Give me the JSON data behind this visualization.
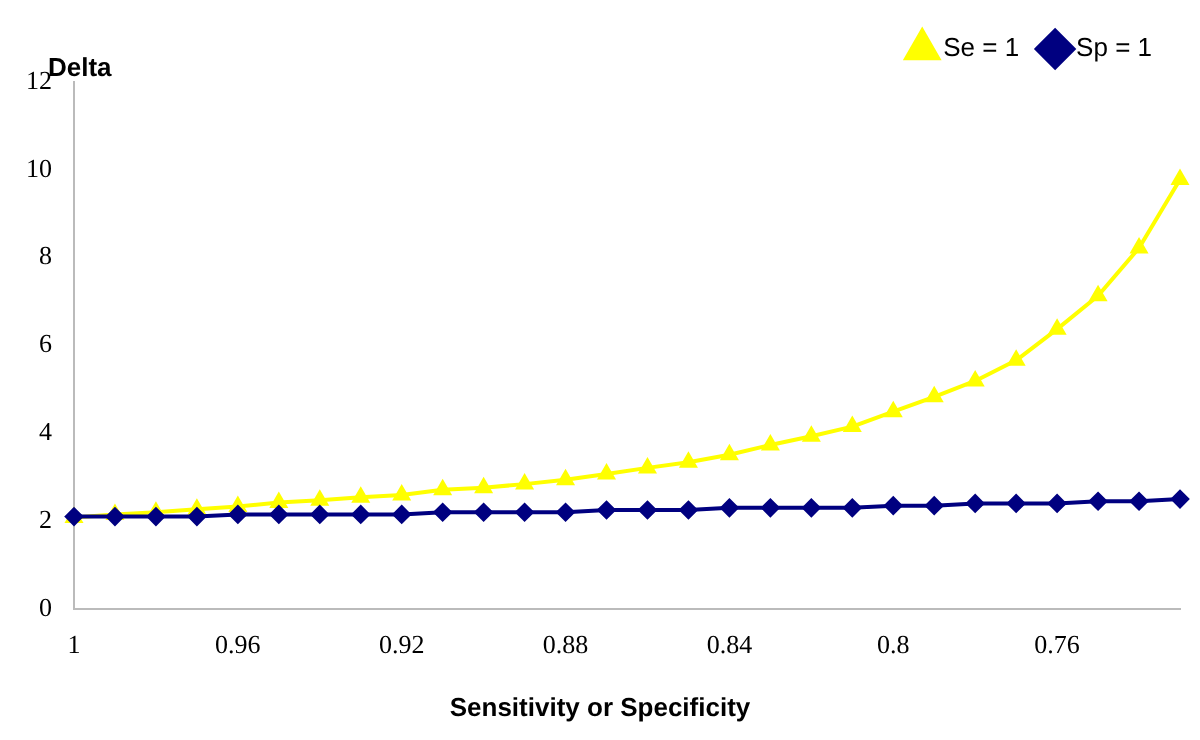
{
  "chart_data": {
    "type": "line",
    "ylabel": "Delta",
    "xlabel": "Sensitivity or Specificity",
    "categories": [
      "1",
      null,
      null,
      null,
      "0.96",
      null,
      null,
      null,
      "0.92",
      null,
      null,
      null,
      "0.88",
      null,
      null,
      null,
      "0.84",
      null,
      null,
      null,
      "0.8",
      null,
      null,
      null,
      "0.76",
      null,
      null,
      null
    ],
    "series": [
      {
        "name": "Se = 1",
        "color": "#ffff00",
        "marker": "triangle",
        "values": [
          2.08,
          2.15,
          2.2,
          2.27,
          2.33,
          2.42,
          2.47,
          2.54,
          2.59,
          2.71,
          2.76,
          2.84,
          2.94,
          3.07,
          3.21,
          3.34,
          3.51,
          3.73,
          3.93,
          4.15,
          4.49,
          4.83,
          5.19,
          5.66,
          6.37,
          7.13,
          8.22,
          9.78
        ]
      },
      {
        "name": "Sp = 1",
        "color": "#000080",
        "marker": "diamond",
        "values": [
          2.1,
          2.1,
          2.1,
          2.1,
          2.15,
          2.15,
          2.15,
          2.15,
          2.15,
          2.2,
          2.2,
          2.2,
          2.2,
          2.25,
          2.25,
          2.25,
          2.3,
          2.3,
          2.3,
          2.3,
          2.35,
          2.35,
          2.4,
          2.4,
          2.4,
          2.45,
          2.45,
          2.5
        ]
      }
    ],
    "ylim": [
      0,
      12
    ],
    "yticks": [
      0,
      2,
      4,
      6,
      8,
      10,
      12
    ],
    "legend": "top right",
    "line_style": "solid"
  }
}
